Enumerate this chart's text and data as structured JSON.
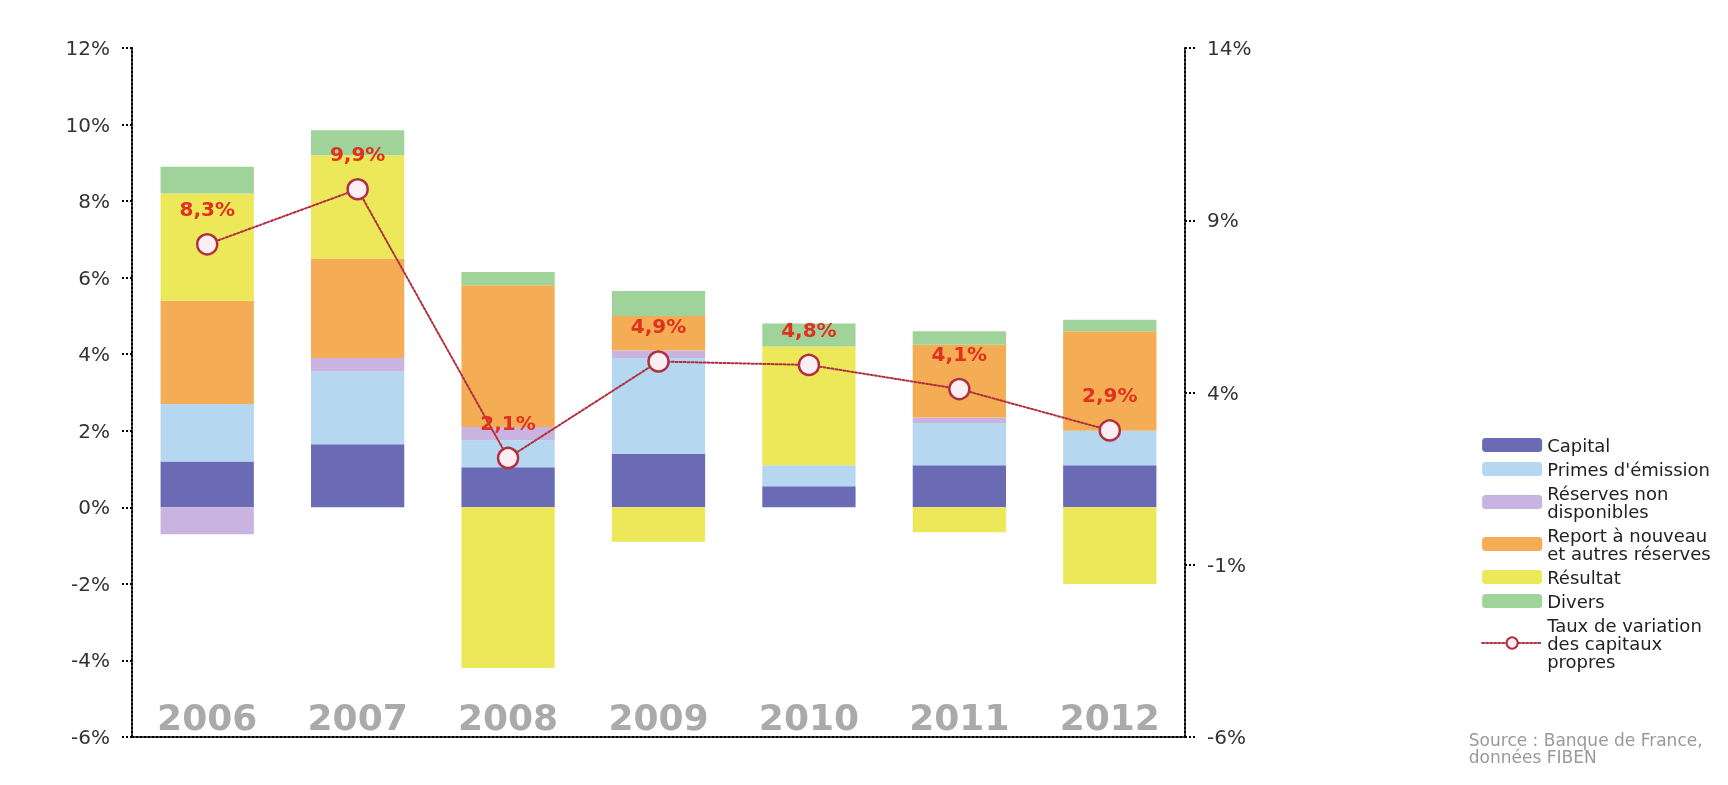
{
  "chart_data": {
    "type": "bar",
    "stacked": true,
    "categories": [
      "2006",
      "2007",
      "2008",
      "2009",
      "2010",
      "2011",
      "2012"
    ],
    "series": [
      {
        "name": "Capital",
        "color": "#6b6bb5",
        "values": [
          1.2,
          1.65,
          1.05,
          1.4,
          0.55,
          1.1,
          1.1
        ]
      },
      {
        "name": "Primes d'émission",
        "color": "#b5d8f0",
        "values": [
          1.5,
          1.9,
          0.7,
          2.5,
          0.55,
          1.1,
          0.9
        ]
      },
      {
        "name": "Réserves non disponibles",
        "color": "#c9b3e0",
        "values": [
          -0.7,
          0.35,
          0.35,
          0.2,
          null,
          0.15,
          null
        ]
      },
      {
        "name": "Report à nouveau et autres réserves",
        "color": "#f5ad55",
        "values": [
          2.7,
          2.6,
          3.7,
          0.9,
          null,
          1.9,
          2.6
        ]
      },
      {
        "name": "Résultat",
        "color": "#ede85a",
        "values": [
          2.8,
          2.7,
          -4.2,
          -0.9,
          3.1,
          -0.65,
          -2.0
        ]
      },
      {
        "name": "Divers",
        "color": "#9fd39a",
        "values": [
          0.7,
          0.65,
          0.35,
          0.65,
          0.6,
          0.35,
          0.3
        ]
      },
      {
        "name": "Taux de variation des capitaux propres",
        "type": "line",
        "axis": "y2",
        "color": "#b03040",
        "marker": "circle",
        "line_style": "dotted",
        "values": [
          8.3,
          9.9,
          2.1,
          4.9,
          4.8,
          4.1,
          2.9
        ],
        "value_labels": [
          "8,3%",
          "9,9%",
          "2,1%",
          "4,9%",
          "4,8%",
          "4,1%",
          "2,9%"
        ]
      }
    ],
    "ylim": [
      -6,
      12
    ],
    "yticks": [
      {
        "value": -6,
        "label": "-6%"
      },
      {
        "value": -4,
        "label": "-4%"
      },
      {
        "value": -2,
        "label": "-2%"
      },
      {
        "value": 0,
        "label": "0%"
      },
      {
        "value": 2,
        "label": "2%"
      },
      {
        "value": 4,
        "label": "4%"
      },
      {
        "value": 6,
        "label": "6%"
      },
      {
        "value": 8,
        "label": "8%"
      },
      {
        "value": 10,
        "label": "10%"
      },
      {
        "value": 12,
        "label": "12%"
      }
    ],
    "y2lim": [
      -6,
      14
    ],
    "y2ticks": [
      {
        "value": -6,
        "label": "-6%"
      },
      {
        "value": -1,
        "label": "-1%"
      },
      {
        "value": 4,
        "label": "4%"
      },
      {
        "value": 9,
        "label": "9%"
      },
      {
        "value": 14,
        "label": "14%"
      }
    ],
    "grid": false,
    "legend": "bottom right",
    "annotations": [
      "Source : Banque de France, données FIBEN"
    ]
  }
}
